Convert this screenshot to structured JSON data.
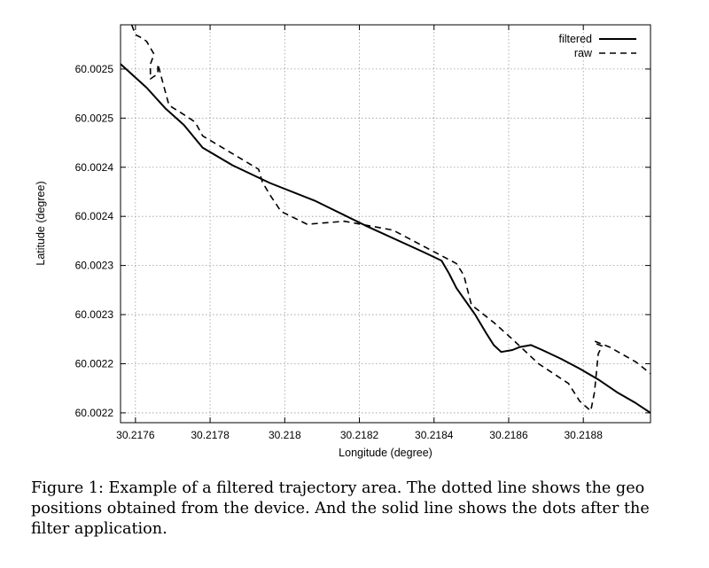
{
  "chart_data": {
    "type": "line",
    "xlabel": "Longitude (degree)",
    "ylabel": "Latitude (degree)",
    "xlim": [
      30.21756,
      30.21898
    ],
    "ylim": [
      60.00216,
      60.002565
    ],
    "x_ticks": [
      30.2176,
      30.2178,
      30.218,
      30.2182,
      30.2184,
      30.2186,
      30.2188
    ],
    "x_tick_labels": [
      "30.2176",
      "30.2178",
      "30.218",
      "30.2182",
      "30.2184",
      "30.2186",
      "30.2188"
    ],
    "y_ticks": [
      60.00217,
      60.00222,
      60.00227,
      60.00232,
      60.00237,
      60.00242,
      60.00247,
      60.00252
    ],
    "y_tick_labels": [
      "60.0022",
      "60.0022",
      "60.0023",
      "60.0023",
      "60.0024",
      "60.0024",
      "60.0025",
      "60.0025"
    ],
    "grid": true,
    "legend_position": "top-right",
    "series": [
      {
        "name": "filtered",
        "style": "solid",
        "color": "#000000",
        "x": [
          30.21756,
          30.21763,
          30.21768,
          30.21773,
          30.21778,
          30.21786,
          30.21796,
          30.21808,
          30.21822,
          30.21837,
          30.21842,
          30.21844,
          30.21846,
          30.21851,
          30.21854,
          30.21856,
          30.21858,
          30.21861,
          30.21863,
          30.21866,
          30.21869,
          30.21874,
          30.21879,
          30.21884,
          30.21889,
          30.21894,
          30.21898
        ],
        "y": [
          60.002525,
          60.002501,
          60.00248,
          60.002463,
          60.00244,
          60.002422,
          60.002404,
          60.002386,
          60.00236,
          60.002334,
          60.002325,
          60.002312,
          60.002297,
          60.00227,
          60.002251,
          60.002239,
          60.002232,
          60.002234,
          60.002237,
          60.002239,
          60.002234,
          60.002225,
          60.002215,
          60.002204,
          60.002191,
          60.00218,
          60.00217
        ]
      },
      {
        "name": "raw",
        "style": "dashed",
        "color": "#000000",
        "x": [
          30.21759,
          30.2176,
          30.21762,
          30.21763,
          30.21765,
          30.21764,
          30.21764,
          30.21766,
          30.21766,
          30.21769,
          30.21772,
          30.21776,
          30.21778,
          30.21793,
          30.21794,
          30.21796,
          30.21799,
          30.21806,
          30.21816,
          30.21829,
          30.21838,
          30.21846,
          30.21848,
          30.21849,
          30.2185,
          30.21856,
          30.21861,
          30.21868,
          30.21876,
          30.21879,
          30.21882,
          30.21883,
          30.21884,
          30.21885,
          30.21883,
          30.21883,
          30.21887,
          30.21894,
          30.21898
        ],
        "y": [
          60.002565,
          60.002555,
          60.002551,
          60.002548,
          60.002535,
          60.002525,
          60.00251,
          60.002515,
          60.002525,
          60.002483,
          60.002476,
          60.002466,
          60.002452,
          60.002418,
          60.002405,
          60.002392,
          60.002375,
          60.002362,
          60.002365,
          60.002356,
          60.002338,
          60.002322,
          60.00231,
          60.002295,
          60.00228,
          60.002262,
          60.002245,
          60.00222,
          60.0022,
          60.002182,
          60.002172,
          60.002191,
          60.00223,
          60.002238,
          60.002241,
          60.002243,
          60.002237,
          60.002222,
          60.00221
        ]
      }
    ]
  },
  "caption": "Figure 1: Example of a filtered trajectory area. The dotted line shows the geo positions obtained from the device. And the solid line shows the dots after the filter application."
}
